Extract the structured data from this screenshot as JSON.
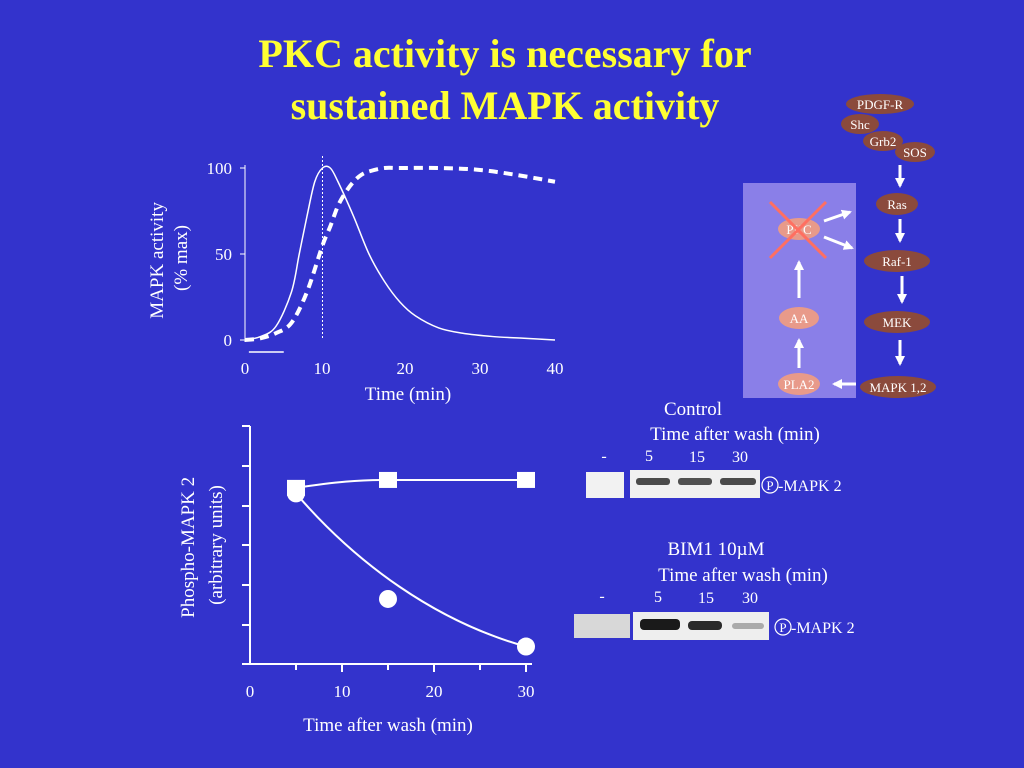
{
  "title": {
    "line1": "PKC activity is necessary for",
    "line2": "sustained MAPK activity"
  },
  "colors": {
    "background": "#3333cc",
    "title": "#ffff33",
    "node": "#8b4a3c",
    "pathway_panel": "#8a7fe8",
    "cross": "#ff6f61"
  },
  "chart_data": [
    {
      "type": "line",
      "title": "",
      "xlabel": "Time (min)",
      "ylabel_line1": "MAPK activity",
      "ylabel_line2": "(% max)",
      "xlim": [
        0,
        40
      ],
      "ylim": [
        0,
        100
      ],
      "xticks": [
        "0",
        "10",
        "20",
        "30",
        "40"
      ],
      "yticks": [
        "0",
        "50",
        "100"
      ],
      "marker_time": 10,
      "bar_interval": [
        0.5,
        5
      ],
      "series": [
        {
          "style": "solid",
          "x": [
            0,
            2,
            4,
            6,
            7,
            8,
            9,
            10,
            11,
            12,
            14,
            16,
            18,
            20,
            22,
            25,
            28,
            32,
            36,
            40
          ],
          "y": [
            0,
            2,
            8,
            28,
            50,
            72,
            92,
            100,
            100,
            92,
            72,
            50,
            34,
            22,
            14,
            7,
            4,
            2,
            1,
            0
          ]
        },
        {
          "style": "dashed",
          "x": [
            0,
            2,
            4,
            6,
            8,
            10,
            11,
            12,
            13,
            14,
            15,
            16,
            18,
            20,
            25,
            30,
            35,
            40
          ],
          "y": [
            0,
            1,
            4,
            10,
            28,
            55,
            66,
            78,
            86,
            92,
            96,
            98,
            100,
            100,
            100,
            99,
            96,
            92
          ]
        }
      ]
    },
    {
      "type": "scatter",
      "title": "",
      "xlabel": "Time after wash (min)",
      "ylabel_line1": "Phospho-MAPK 2",
      "ylabel_line2": "(arbitrary units)",
      "xlim": [
        0,
        30
      ],
      "ylim": [
        0,
        3
      ],
      "xticks": [
        "0",
        "10",
        "20",
        "30"
      ],
      "series": [
        {
          "marker": "square",
          "x": [
            5,
            15,
            30
          ],
          "y": [
            2.22,
            2.32,
            2.32
          ]
        },
        {
          "marker": "circle",
          "x": [
            5,
            15,
            30
          ],
          "y": [
            2.15,
            0.82,
            0.22
          ]
        }
      ]
    }
  ],
  "blots": {
    "control": {
      "title": "Control",
      "subtitle": "Time after wash (min)",
      "lanes": [
        "-",
        "5",
        "15",
        "30"
      ],
      "label_circled": "P",
      "label": "-MAPK 2"
    },
    "bim1": {
      "title": "BIM1 10µM",
      "subtitle": "Time after wash (min)",
      "lanes": [
        "-",
        "5",
        "15",
        "30"
      ],
      "label_circled": "P",
      "label": "-MAPK 2"
    }
  },
  "pathway": {
    "top": [
      "PDGF-R",
      "Shc",
      "Grb2",
      "SOS"
    ],
    "main": [
      "Ras",
      "Raf-1",
      "MEK",
      "MAPK 1,2"
    ],
    "side": [
      "PKC",
      "AA",
      "PLA2"
    ]
  }
}
